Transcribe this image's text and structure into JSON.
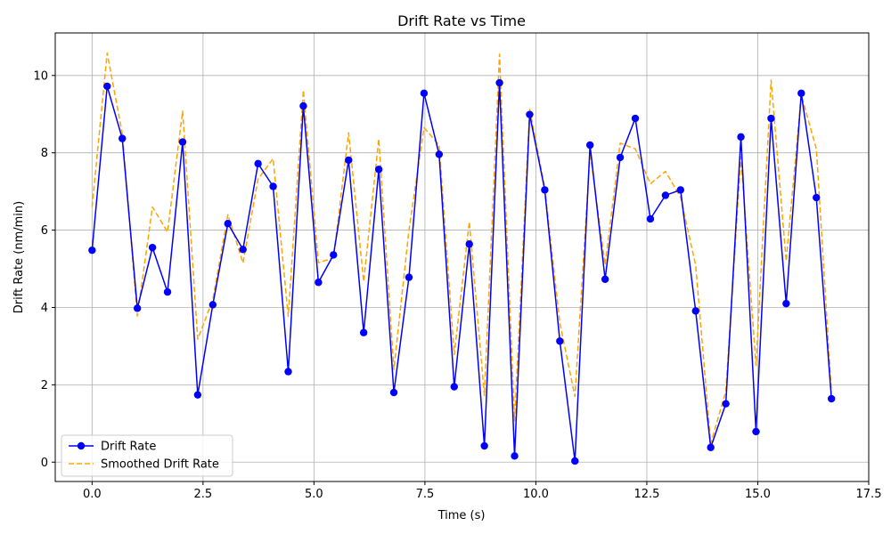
{
  "chart_data": {
    "type": "line",
    "title": "Drift Rate vs Time",
    "xlabel": "Time (s)",
    "ylabel": "Drift Rate (nm/min)",
    "xlim": [
      -0.83,
      17.5
    ],
    "ylim": [
      -0.5,
      11.1
    ],
    "xticks": [
      0.0,
      2.5,
      5.0,
      7.5,
      10.0,
      12.5,
      15.0,
      17.5
    ],
    "xtick_labels": [
      "0.0",
      "2.5",
      "5.0",
      "7.5",
      "10.0",
      "12.5",
      "15.0",
      "17.5"
    ],
    "yticks": [
      0,
      2,
      4,
      6,
      8,
      10
    ],
    "ytick_labels": [
      "0",
      "2",
      "4",
      "6",
      "8",
      "10"
    ],
    "grid": true,
    "legend_position": "lower left",
    "x": [
      0.0,
      0.34,
      0.68,
      1.02,
      1.36,
      1.7,
      2.04,
      2.38,
      2.72,
      3.06,
      3.4,
      3.74,
      4.08,
      4.42,
      4.76,
      5.1,
      5.44,
      5.78,
      6.12,
      6.46,
      6.8,
      7.14,
      7.48,
      7.82,
      8.16,
      8.5,
      8.84,
      9.18,
      9.52,
      9.86,
      10.2,
      10.54,
      10.88,
      11.22,
      11.56,
      11.9,
      12.24,
      12.58,
      12.92,
      13.26,
      13.6,
      13.94,
      14.28,
      14.62,
      14.96,
      15.3,
      15.64,
      15.98,
      16.32,
      16.66
    ],
    "series": [
      {
        "name": "Drift Rate",
        "color": "#0000ff",
        "style": "solid",
        "marker": "circle",
        "values": [
          5.48,
          9.72,
          8.37,
          3.98,
          5.55,
          4.4,
          8.28,
          1.74,
          4.07,
          6.17,
          5.5,
          7.72,
          7.13,
          2.34,
          9.21,
          4.65,
          5.36,
          7.81,
          3.35,
          7.57,
          1.8,
          4.78,
          9.54,
          7.96,
          1.95,
          5.64,
          0.42,
          9.81,
          0.16,
          8.99,
          7.04,
          3.13,
          0.03,
          8.2,
          4.73,
          7.88,
          8.89,
          6.29,
          6.9,
          7.04,
          3.91,
          0.38,
          1.51,
          8.41,
          0.79,
          8.89,
          4.1,
          9.54,
          6.84,
          1.64
        ]
      },
      {
        "name": "Smoothed Drift Rate",
        "color": "#ffa500",
        "style": "dashed",
        "marker": "none",
        "values": [
          6.6,
          10.58,
          8.5,
          3.78,
          6.6,
          5.95,
          9.08,
          3.18,
          4.2,
          6.4,
          5.15,
          7.32,
          7.85,
          3.77,
          9.62,
          5.16,
          5.28,
          8.52,
          4.67,
          8.36,
          2.4,
          6.0,
          8.65,
          8.2,
          2.78,
          6.22,
          1.72,
          10.55,
          1.07,
          9.12,
          7.1,
          3.6,
          1.7,
          8.0,
          5.1,
          8.25,
          8.1,
          7.2,
          7.52,
          6.85,
          5.1,
          0.48,
          1.83,
          7.9,
          2.5,
          9.88,
          5.2,
          9.5,
          8.1,
          1.8
        ]
      }
    ]
  }
}
